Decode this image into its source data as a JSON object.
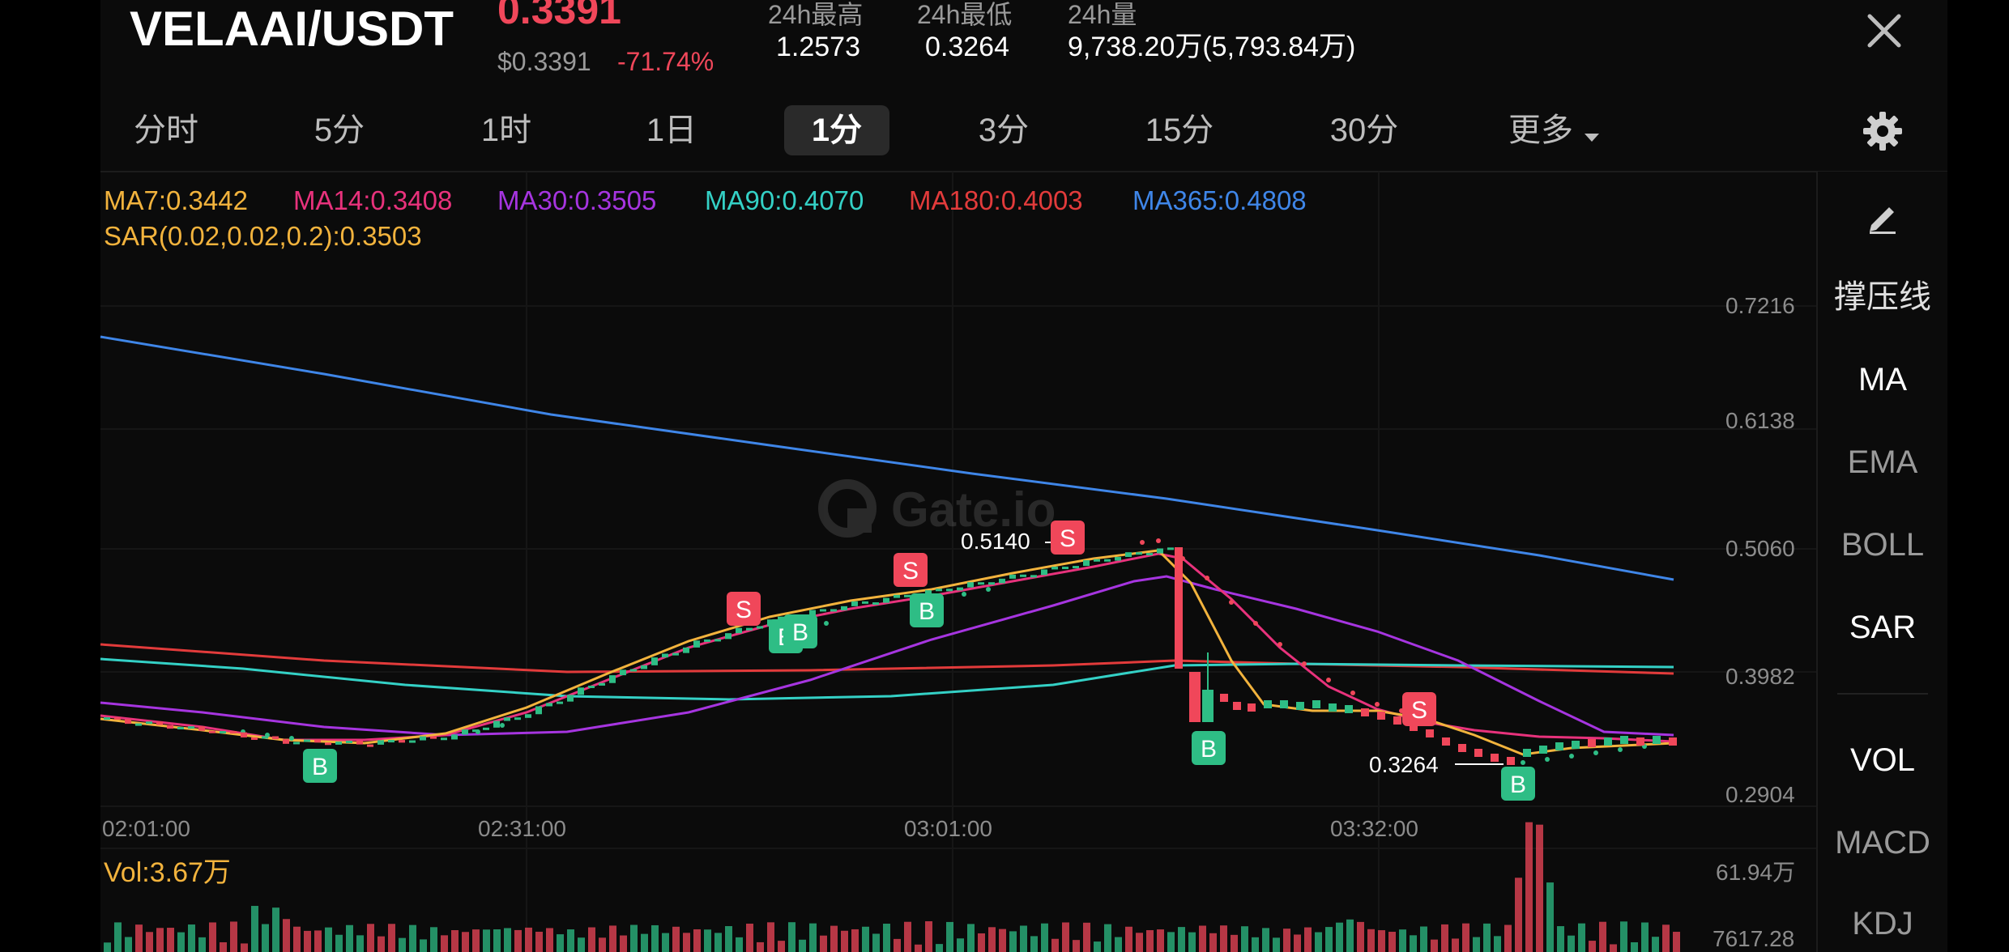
{
  "header": {
    "pair": "VELAAI/USDT",
    "price": "0.3391",
    "fiat_price": "$0.3391",
    "change": "-71.74%",
    "stats": [
      {
        "label": "24h最高",
        "value": "1.2573"
      },
      {
        "label": "24h最低",
        "value": "0.3264"
      },
      {
        "label": "24h量",
        "value": "9,738.20万(5,793.84万)"
      }
    ]
  },
  "tabs": [
    {
      "label": "分时"
    },
    {
      "label": "5分"
    },
    {
      "label": "1时"
    },
    {
      "label": "1日"
    },
    {
      "label": "1分",
      "active": true
    },
    {
      "label": "3分"
    },
    {
      "label": "15分"
    },
    {
      "label": "30分"
    },
    {
      "label": "更多"
    }
  ],
  "indicators": {
    "ma7": "MA7:0.3442",
    "ma14": "MA14:0.3408",
    "ma30": "MA30:0.3505",
    "ma90": "MA90:0.4070",
    "ma180": "MA180:0.4003",
    "ma365": "MA365:0.4808",
    "sar": "SAR(0.02,0.02,0.2):0.3503"
  },
  "colors": {
    "up": "#2ebd85",
    "down": "#f0475a",
    "ma7": "#f2b33d",
    "ma14": "#e8327c",
    "ma30": "#a635e0",
    "ma90": "#34d1c6",
    "ma180": "#e23b3b",
    "ma365": "#3f86e8",
    "sar": "#f2b33d"
  },
  "watermark": "Gate.io",
  "price_axis": [
    "0.7216",
    "0.6138",
    "0.5060",
    "0.3982",
    "0.2904"
  ],
  "time_axis": [
    "02:01:00",
    "02:31:00",
    "03:01:00",
    "03:32:00"
  ],
  "annotations": {
    "high": "0.5140",
    "low": "0.3264"
  },
  "trade_markers": {
    "buy": "B",
    "sell": "S"
  },
  "sidebar": {
    "items": [
      {
        "label": "撑压线"
      },
      {
        "label": "MA"
      },
      {
        "label": "EMA"
      },
      {
        "label": "BOLL"
      },
      {
        "label": "SAR"
      },
      {
        "label": "VOL"
      },
      {
        "label": "MACD"
      },
      {
        "label": "KDJ"
      }
    ]
  },
  "volume": {
    "label": "Vol:3.67万",
    "axis_max": "61.94万",
    "axis_min": "7617.28"
  },
  "chart_data": {
    "type": "line",
    "x": [
      "02:01:00",
      "02:31:00",
      "03:01:00",
      "03:32:00"
    ],
    "ylim": [
      0.2904,
      0.7216
    ],
    "series": [
      {
        "name": "MA365",
        "values": [
          0.66,
          0.61,
          0.55,
          0.48
        ]
      },
      {
        "name": "MA180",
        "values": [
          0.42,
          0.405,
          0.405,
          0.4
        ]
      },
      {
        "name": "MA90",
        "values": [
          0.415,
          0.385,
          0.39,
          0.407
        ]
      },
      {
        "name": "MA30",
        "values": [
          0.36,
          0.34,
          0.41,
          0.35
        ]
      },
      {
        "name": "MA14",
        "values": [
          0.35,
          0.35,
          0.47,
          0.34
        ]
      },
      {
        "name": "MA7",
        "values": [
          0.35,
          0.36,
          0.48,
          0.344
        ]
      }
    ]
  }
}
